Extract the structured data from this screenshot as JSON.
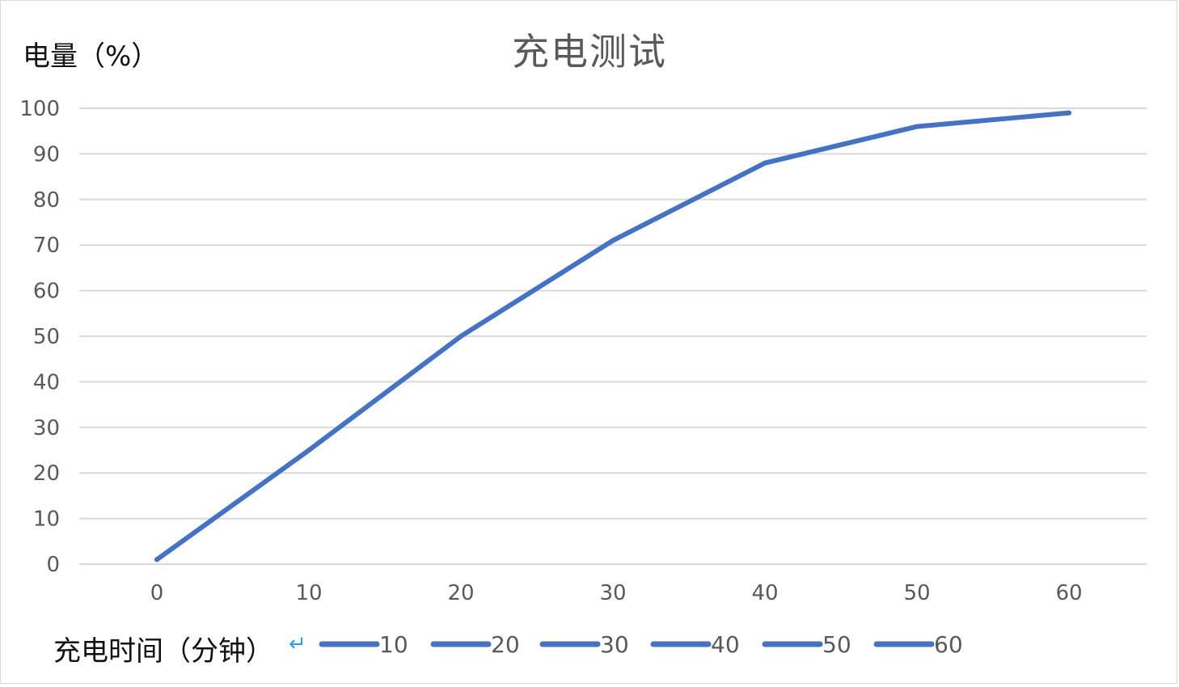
{
  "chart_data": {
    "type": "line",
    "title": "充电测试",
    "ylabel": "电量（%）",
    "xlabel": "充电时间（分钟）",
    "xlabel_mark": "↵",
    "x": [
      0,
      10,
      20,
      30,
      40,
      50,
      60
    ],
    "series": [
      {
        "values": [
          1,
          25,
          50,
          71,
          88,
          96,
          99
        ],
        "color": "#4472c4"
      }
    ],
    "ylim": [
      0,
      100
    ],
    "ytick_step": 10,
    "grid": true,
    "gridline_color": "#d9d9d9",
    "legend_entries": [
      "10",
      "20",
      "30",
      "40",
      "50",
      "60"
    ],
    "legend_position": "bottom"
  }
}
